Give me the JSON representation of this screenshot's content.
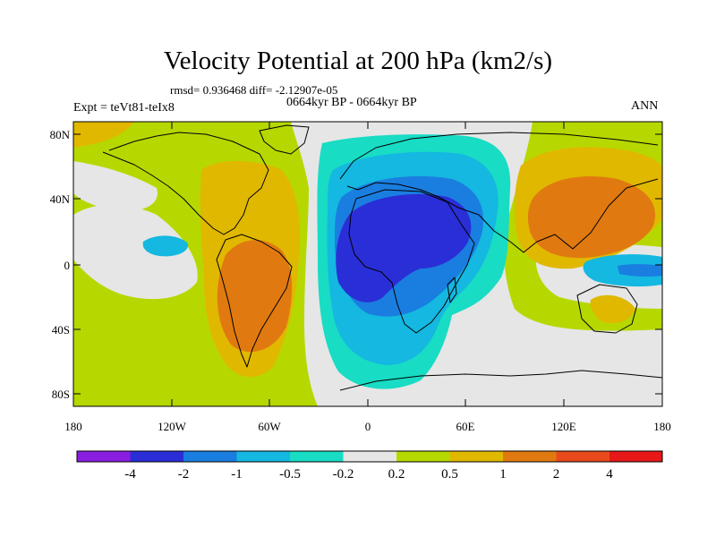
{
  "title": "Velocity Potential at 200 hPa (km2/s)",
  "stats": "rmsd= 0.936468 diff= -2.12907e-05",
  "experiment": "Expt = teVt81-teIx8",
  "period": "0664kyr BP - 0664kyr BP",
  "season": "ANN",
  "lat_labels": [
    "80N",
    "40N",
    "0",
    "40S",
    "80S"
  ],
  "lon_labels": [
    "180",
    "120W",
    "60W",
    "0",
    "60E",
    "120E",
    "180"
  ],
  "colorbar": {
    "tick_labels": [
      "-4",
      "-2",
      "-1",
      "-0.5",
      "-0.2",
      "0.2",
      "0.5",
      "1",
      "2",
      "4"
    ],
    "colors": [
      "#8a1ee0",
      "#2a2ed6",
      "#1a7ee0",
      "#14b8e0",
      "#18dcc4",
      "#e6e6e6",
      "#b6d800",
      "#e0b800",
      "#e07a10",
      "#e84a1c",
      "#e81818"
    ]
  },
  "field_colors": {
    "weak": "#e6e6e6",
    "pos1": "#b6d800",
    "pos2": "#e0b800",
    "pos3": "#e07a10",
    "neg1": "#18dcc4",
    "neg2": "#14b8e0",
    "neg3": "#1a7ee0",
    "neg4": "#2a2ed6",
    "coast": "#000000"
  }
}
